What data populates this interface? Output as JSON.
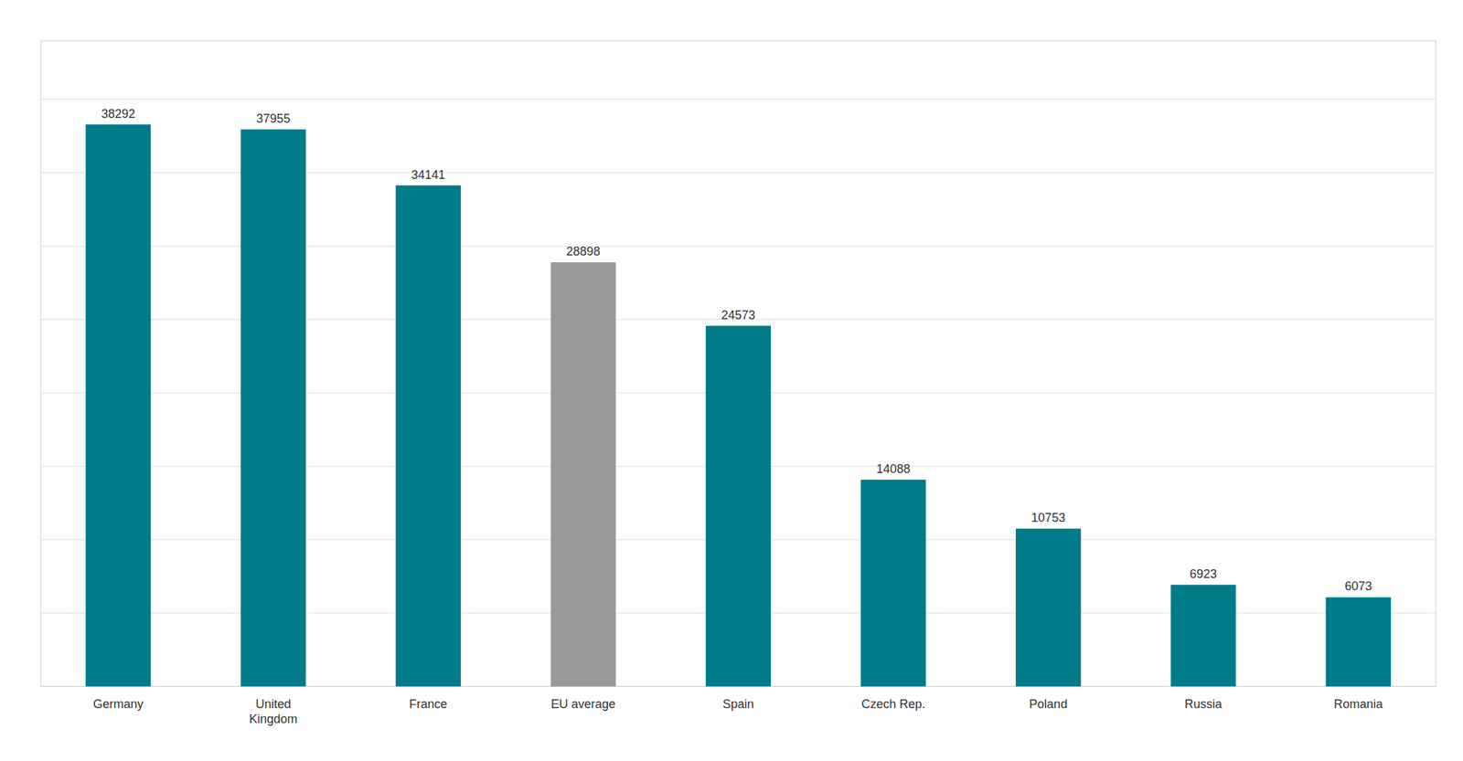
{
  "chart_data": {
    "type": "bar",
    "categories": [
      "Germany",
      "United\nKingdom",
      "France",
      "EU average",
      "Spain",
      "Czech Rep.",
      "Poland",
      "Russia",
      "Romania"
    ],
    "values": [
      38292,
      37955,
      34141,
      28898,
      24573,
      14088,
      10753,
      6923,
      6073
    ],
    "colors": [
      "#007B8A",
      "#007B8A",
      "#007B8A",
      "#999999",
      "#007B8A",
      "#007B8A",
      "#007B8A",
      "#007B8A",
      "#007B8A"
    ],
    "ylim": [
      0,
      44000
    ],
    "yticks": [
      0,
      5000,
      10000,
      15000,
      20000,
      25000,
      30000,
      35000,
      40000
    ],
    "grid": true,
    "data_labels": true,
    "tick_labels": "x"
  }
}
